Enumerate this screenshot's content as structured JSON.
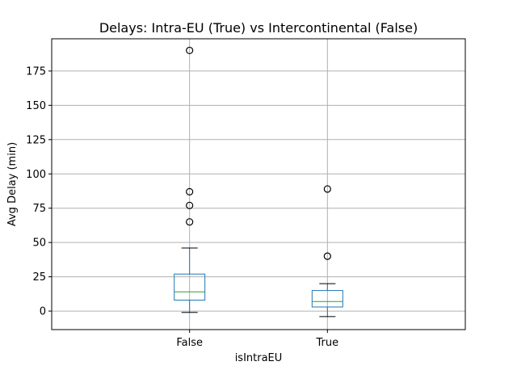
{
  "chart_data": {
    "type": "box",
    "title": "Delays: Intra-EU (True) vs Intercontinental (False)",
    "xlabel": "isIntraEU",
    "ylabel": "Avg Delay (min)",
    "ylim": [
      -13.5,
      198.5
    ],
    "yticks": [
      0,
      25,
      50,
      75,
      100,
      125,
      150,
      175
    ],
    "grid": true,
    "categories": [
      "False",
      "True"
    ],
    "boxes": [
      {
        "category": "False",
        "whisker_low": -1,
        "q1": 8,
        "median": 14,
        "q3": 27,
        "whisker_high": 46,
        "outliers": [
          190,
          87,
          77,
          65
        ]
      },
      {
        "category": "True",
        "whisker_low": -4,
        "q1": 3,
        "median": 7,
        "q3": 15,
        "whisker_high": 20,
        "outliers": [
          89,
          40
        ]
      }
    ]
  },
  "colors": {
    "box": "#1f77b4",
    "median": "#2ca02c",
    "whisker": "#000000",
    "grid": "#b0b0b0",
    "outlier_edge": "#000000"
  }
}
